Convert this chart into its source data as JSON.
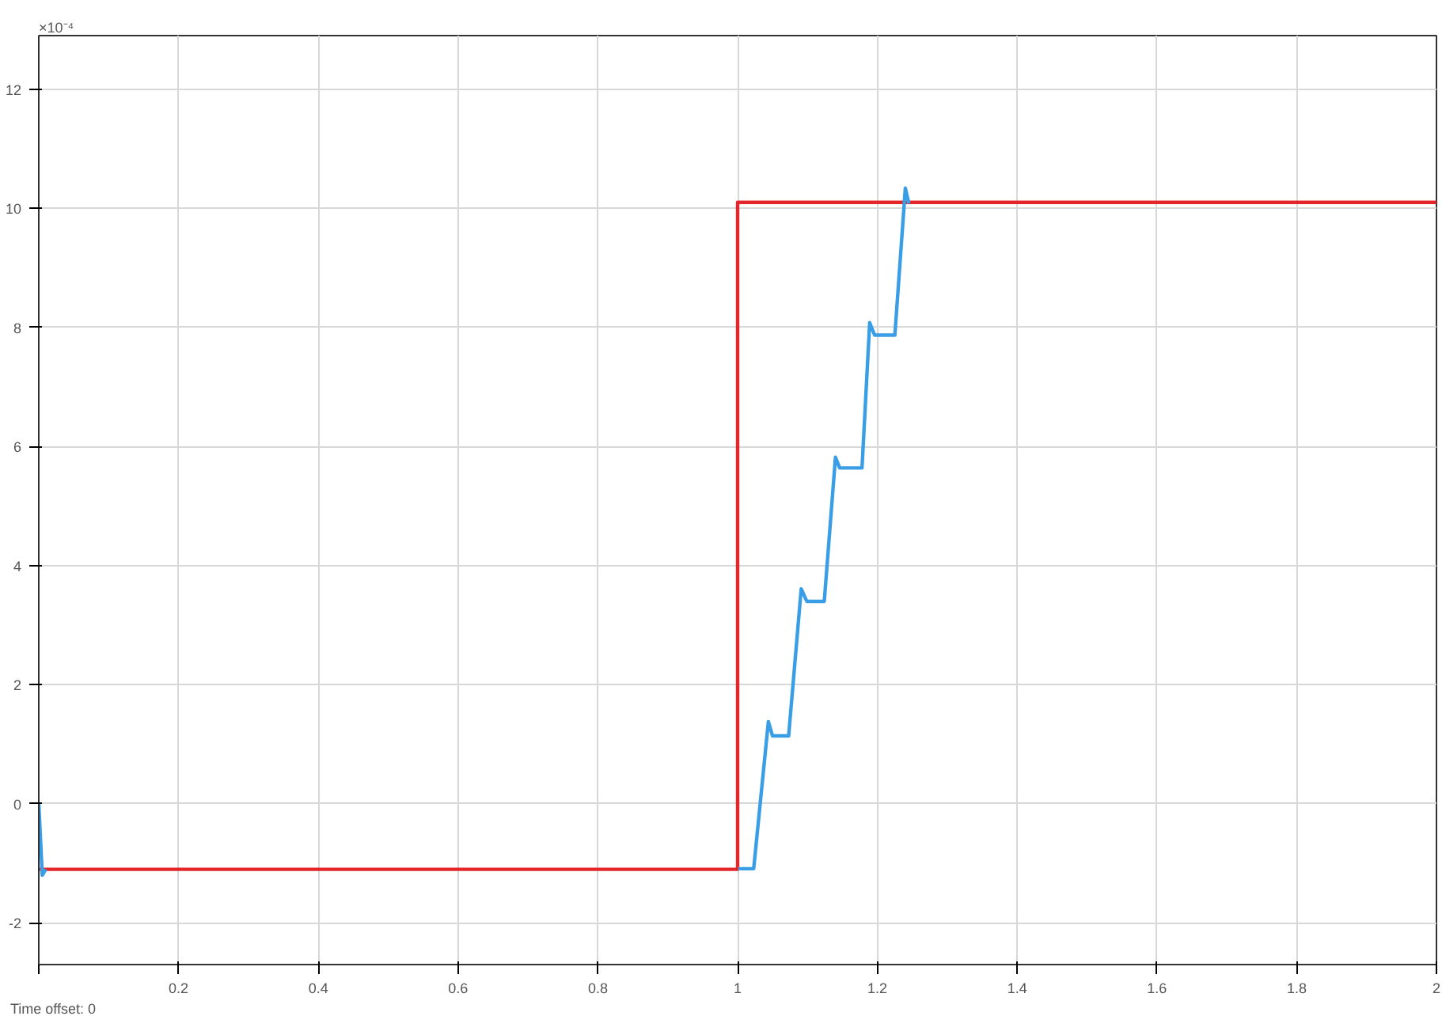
{
  "chart_data": {
    "type": "line",
    "xlim": [
      0,
      2
    ],
    "ylim": [
      -2.7,
      12.9
    ],
    "xticks": [
      {
        "value": 0,
        "label": null
      },
      0.2,
      0.4,
      0.6,
      0.8,
      1,
      1.2,
      1.4,
      1.6,
      1.8,
      2
    ],
    "yticks": [
      -2,
      0,
      2,
      4,
      6,
      8,
      10,
      12
    ],
    "grid": true,
    "marker": "none",
    "line_style": "solid",
    "annotations": [
      "×10⁻⁴",
      "Time offset: 0"
    ],
    "series": [
      {
        "color": "#e3262a",
        "x": [
          0,
          1,
          1,
          2
        ],
        "values": [
          -1.1,
          -1.1,
          10.1,
          10.1
        ]
      },
      {
        "color": "#3a9ee6",
        "x": [
          0,
          0.005,
          0.01,
          0.5,
          1.001,
          1.023,
          1.044,
          1.05,
          1.073,
          1.091,
          1.099,
          1.124,
          1.14,
          1.146,
          1.178,
          1.189,
          1.196,
          1.225,
          1.24,
          1.245
        ],
        "values": [
          0,
          -1.2,
          -1.1,
          null,
          -1.09,
          -1.09,
          1.38,
          1.14,
          1.14,
          3.61,
          3.4,
          3.4,
          5.82,
          5.64,
          5.64,
          8.08,
          7.87,
          7.87,
          10.34,
          10.08
        ]
      }
    ]
  }
}
